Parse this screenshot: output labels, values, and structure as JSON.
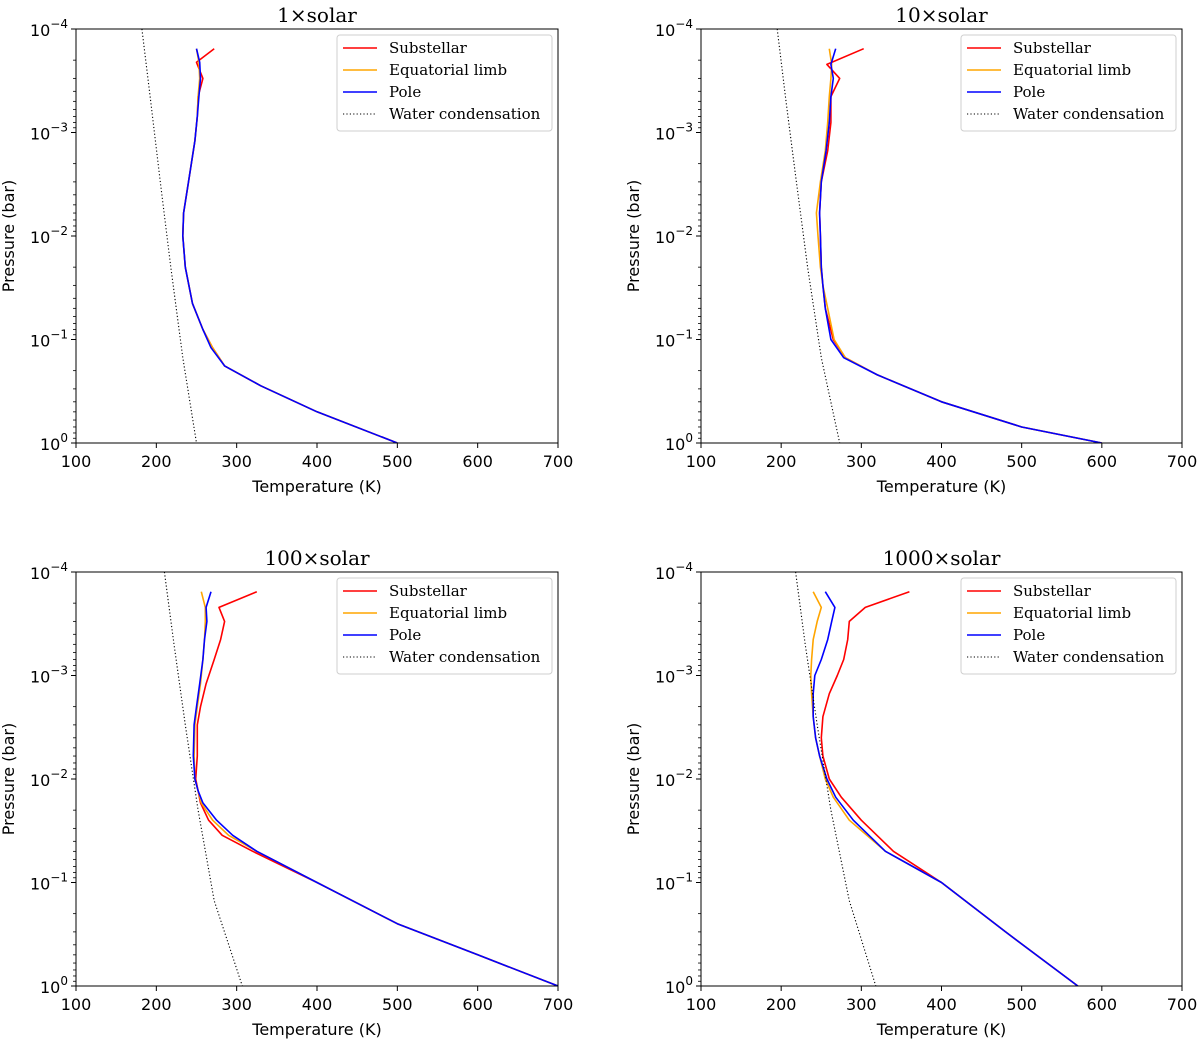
{
  "chart_data": [
    {
      "type": "line",
      "title": "1×solar",
      "xlabel": "Temperature (K)",
      "ylabel": "Pressure (bar)",
      "xlim": [
        100,
        700
      ],
      "ylim": [
        1,
        0.0001
      ],
      "yscale": "log",
      "xticks": [
        "100",
        "200",
        "300",
        "400",
        "500",
        "600",
        "700"
      ],
      "yticks": [
        {
          "base": "10",
          "exp": "−4"
        },
        {
          "base": "10",
          "exp": "−3"
        },
        {
          "base": "10",
          "exp": "−2"
        },
        {
          "base": "10",
          "exp": "−1"
        },
        {
          "base": "10",
          "exp": "0"
        }
      ],
      "legend_position": "upper-right",
      "series": [
        {
          "name": "Substellar",
          "color": "#ff0000",
          "style": "solid",
          "x": [
            272,
            250,
            258,
            252,
            251,
            248,
            240,
            234,
            233,
            236,
            245,
            258,
            270,
            285,
            330,
            400,
            500
          ],
          "y": [
            0.000155,
            0.00021,
            0.0003,
            0.00045,
            0.0007,
            0.0012,
            0.003,
            0.006,
            0.01,
            0.02,
            0.045,
            0.08,
            0.12,
            0.18,
            0.28,
            0.5,
            1.0
          ]
        },
        {
          "name": "Equatorial limb",
          "color": "#ffa500",
          "style": "solid",
          "x": [
            250,
            253,
            254,
            252,
            251,
            248,
            240,
            234,
            233,
            236,
            245,
            258,
            270,
            285,
            330,
            400,
            500
          ],
          "y": [
            0.000155,
            0.00021,
            0.0003,
            0.00045,
            0.0007,
            0.0012,
            0.003,
            0.006,
            0.01,
            0.02,
            0.045,
            0.08,
            0.12,
            0.18,
            0.28,
            0.5,
            1.0
          ]
        },
        {
          "name": "Pole",
          "color": "#0000ff",
          "style": "solid",
          "x": [
            250,
            254,
            255,
            253,
            251,
            248,
            240,
            234,
            233,
            236,
            245,
            258,
            268,
            285,
            330,
            400,
            500
          ],
          "y": [
            0.000155,
            0.00021,
            0.0003,
            0.00045,
            0.0007,
            0.0012,
            0.003,
            0.006,
            0.01,
            0.02,
            0.045,
            0.08,
            0.12,
            0.18,
            0.28,
            0.5,
            1.0
          ]
        },
        {
          "name": "Water condensation",
          "color": "#000000",
          "style": "dotted",
          "x": [
            182,
            193,
            205,
            218,
            233,
            250
          ],
          "y": [
            0.0001,
            0.0005,
            0.003,
            0.02,
            0.15,
            1.0
          ]
        }
      ]
    },
    {
      "type": "line",
      "title": "10×solar",
      "xlabel": "Temperature (K)",
      "ylabel": "Pressure (bar)",
      "xlim": [
        100,
        700
      ],
      "ylim": [
        1,
        0.0001
      ],
      "yscale": "log",
      "xticks": [
        "100",
        "200",
        "300",
        "400",
        "500",
        "600",
        "700"
      ],
      "yticks": [
        {
          "base": "10",
          "exp": "−4"
        },
        {
          "base": "10",
          "exp": "−3"
        },
        {
          "base": "10",
          "exp": "−2"
        },
        {
          "base": "10",
          "exp": "−1"
        },
        {
          "base": "10",
          "exp": "0"
        }
      ],
      "legend_position": "upper-right",
      "series": [
        {
          "name": "Substellar",
          "color": "#ff0000",
          "style": "solid",
          "x": [
            303,
            257,
            273,
            262,
            262,
            258,
            250,
            248,
            249,
            250,
            252,
            255,
            265,
            280,
            320,
            400,
            500,
            600
          ],
          "y": [
            0.000155,
            0.00022,
            0.0003,
            0.00045,
            0.0008,
            0.0015,
            0.003,
            0.006,
            0.01,
            0.02,
            0.03,
            0.05,
            0.1,
            0.15,
            0.22,
            0.4,
            0.7,
            1.0
          ]
        },
        {
          "name": "Equatorial limb",
          "color": "#ffa500",
          "style": "solid",
          "x": [
            260,
            263,
            262,
            260,
            258,
            255,
            249,
            244,
            246,
            249,
            252,
            258,
            266,
            280,
            320,
            400,
            500,
            600
          ],
          "y": [
            0.000155,
            0.00022,
            0.0003,
            0.00045,
            0.0008,
            0.0015,
            0.003,
            0.006,
            0.01,
            0.02,
            0.03,
            0.05,
            0.1,
            0.15,
            0.22,
            0.4,
            0.7,
            1.0
          ]
        },
        {
          "name": "Pole",
          "color": "#0000ff",
          "style": "solid",
          "x": [
            268,
            262,
            265,
            262,
            260,
            256,
            250,
            248,
            249,
            250,
            252,
            255,
            262,
            278,
            320,
            400,
            500,
            600
          ],
          "y": [
            0.000155,
            0.00022,
            0.0003,
            0.00045,
            0.0008,
            0.0015,
            0.003,
            0.006,
            0.01,
            0.02,
            0.03,
            0.05,
            0.1,
            0.15,
            0.22,
            0.4,
            0.7,
            1.0
          ]
        },
        {
          "name": "Water condensation",
          "color": "#000000",
          "style": "dotted",
          "x": [
            195,
            206,
            219,
            233,
            250,
            273
          ],
          "y": [
            0.0001,
            0.0005,
            0.003,
            0.02,
            0.15,
            1.0
          ]
        }
      ]
    },
    {
      "type": "line",
      "title": "100×solar",
      "xlabel": "Temperature (K)",
      "ylabel": "Pressure (bar)",
      "xlim": [
        100,
        700
      ],
      "ylim": [
        1,
        0.0001
      ],
      "yscale": "log",
      "xticks": [
        "100",
        "200",
        "300",
        "400",
        "500",
        "600",
        "700"
      ],
      "yticks": [
        {
          "base": "10",
          "exp": "−4"
        },
        {
          "base": "10",
          "exp": "−3"
        },
        {
          "base": "10",
          "exp": "−2"
        },
        {
          "base": "10",
          "exp": "−1"
        },
        {
          "base": "10",
          "exp": "0"
        }
      ],
      "legend_position": "upper-right",
      "series": [
        {
          "name": "Substellar",
          "color": "#ff0000",
          "style": "solid",
          "x": [
            325,
            278,
            285,
            280,
            272,
            262,
            255,
            251,
            251,
            249,
            252,
            255,
            265,
            282,
            320,
            400,
            500,
            600,
            700
          ],
          "y": [
            0.000155,
            0.00022,
            0.0003,
            0.00045,
            0.0007,
            0.0012,
            0.002,
            0.003,
            0.006,
            0.01,
            0.013,
            0.017,
            0.025,
            0.035,
            0.05,
            0.1,
            0.25,
            0.5,
            1.0
          ]
        },
        {
          "name": "Equatorial limb",
          "color": "#ffa500",
          "style": "solid",
          "x": [
            256,
            261,
            261,
            260,
            258,
            255,
            251,
            248,
            247,
            248,
            252,
            256,
            270,
            290,
            325,
            400,
            500,
            600,
            700
          ],
          "y": [
            0.000155,
            0.00022,
            0.0003,
            0.00045,
            0.0007,
            0.0012,
            0.002,
            0.003,
            0.006,
            0.01,
            0.013,
            0.017,
            0.025,
            0.035,
            0.05,
            0.1,
            0.25,
            0.5,
            1.0
          ]
        },
        {
          "name": "Pole",
          "color": "#0000ff",
          "style": "solid",
          "x": [
            268,
            262,
            263,
            260,
            258,
            254,
            250,
            247,
            246,
            248,
            252,
            258,
            275,
            295,
            325,
            400,
            500,
            600,
            700
          ],
          "y": [
            0.000155,
            0.00022,
            0.0003,
            0.00045,
            0.0007,
            0.0012,
            0.002,
            0.003,
            0.006,
            0.01,
            0.013,
            0.017,
            0.025,
            0.035,
            0.05,
            0.1,
            0.25,
            0.5,
            1.0
          ]
        },
        {
          "name": "Water condensation",
          "color": "#000000",
          "style": "dotted",
          "x": [
            210,
            222,
            236,
            252,
            272,
            307
          ],
          "y": [
            0.0001,
            0.0005,
            0.003,
            0.02,
            0.15,
            1.0
          ]
        }
      ]
    },
    {
      "type": "line",
      "title": "1000×solar",
      "xlabel": "Temperature (K)",
      "ylabel": "Pressure (bar)",
      "xlim": [
        100,
        700
      ],
      "ylim": [
        1,
        0.0001
      ],
      "yscale": "log",
      "xticks": [
        "100",
        "200",
        "300",
        "400",
        "500",
        "600",
        "700"
      ],
      "yticks": [
        {
          "base": "10",
          "exp": "−4"
        },
        {
          "base": "10",
          "exp": "−3"
        },
        {
          "base": "10",
          "exp": "−2"
        },
        {
          "base": "10",
          "exp": "−1"
        },
        {
          "base": "10",
          "exp": "0"
        }
      ],
      "legend_position": "upper-right",
      "series": [
        {
          "name": "Substellar",
          "color": "#ff0000",
          "style": "solid",
          "x": [
            360,
            305,
            285,
            283,
            278,
            270,
            260,
            252,
            250,
            252,
            260,
            275,
            300,
            340,
            400,
            480,
            570
          ],
          "y": [
            0.000155,
            0.00022,
            0.0003,
            0.00045,
            0.0007,
            0.001,
            0.0015,
            0.0025,
            0.004,
            0.006,
            0.01,
            0.015,
            0.025,
            0.05,
            0.1,
            0.3,
            1.0
          ]
        },
        {
          "name": "Equatorial limb",
          "color": "#ffa500",
          "style": "solid",
          "x": [
            240,
            250,
            245,
            240,
            238,
            237,
            238,
            240,
            243,
            248,
            255,
            265,
            285,
            330,
            400,
            480,
            570
          ],
          "y": [
            0.000155,
            0.00022,
            0.0003,
            0.00045,
            0.0007,
            0.001,
            0.0015,
            0.0025,
            0.004,
            0.006,
            0.01,
            0.015,
            0.025,
            0.05,
            0.1,
            0.3,
            1.0
          ]
        },
        {
          "name": "Pole",
          "color": "#0000ff",
          "style": "solid",
          "x": [
            255,
            267,
            263,
            258,
            250,
            242,
            240,
            240,
            243,
            248,
            257,
            268,
            290,
            330,
            400,
            480,
            570
          ],
          "y": [
            0.000155,
            0.00022,
            0.0003,
            0.00045,
            0.0007,
            0.001,
            0.0015,
            0.0025,
            0.004,
            0.006,
            0.01,
            0.015,
            0.025,
            0.05,
            0.1,
            0.3,
            1.0
          ]
        },
        {
          "name": "Water condensation",
          "color": "#000000",
          "style": "dotted",
          "x": [
            218,
            230,
            245,
            262,
            285,
            318
          ],
          "y": [
            0.0001,
            0.0005,
            0.003,
            0.02,
            0.15,
            1.0
          ]
        }
      ]
    }
  ]
}
